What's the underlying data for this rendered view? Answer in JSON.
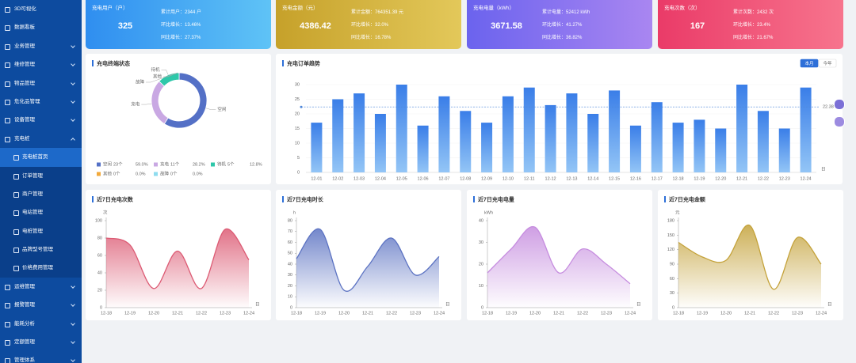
{
  "sidebar": {
    "items": [
      {
        "label": "3D可视化"
      },
      {
        "label": "数据看板"
      },
      {
        "label": "业务管理"
      },
      {
        "label": "维修管理"
      },
      {
        "label": "物品管理"
      },
      {
        "label": "危化品管理"
      },
      {
        "label": "设备管理"
      },
      {
        "label": "充电桩",
        "children": [
          "充电桩首页",
          "订单管理",
          "商户管理",
          "电站管理",
          "电桩管理",
          "品牌型号管理",
          "价格费用管理"
        ]
      },
      {
        "label": "运维管理"
      },
      {
        "label": "报警管理"
      },
      {
        "label": "能耗分析"
      },
      {
        "label": "定额管理"
      },
      {
        "label": "管理体系"
      }
    ]
  },
  "kpis": [
    {
      "title": "充电用户（户）",
      "value": 325,
      "lines": [
        "累计用户：2344 户",
        "环比增长：13.46%",
        "同比增长：27.37%"
      ],
      "colors": [
        "#2f8ef0",
        "#5fc3f6"
      ]
    },
    {
      "title": "充电金额（元）",
      "value": 4386.42,
      "lines": [
        "累计金额：764351.39 元",
        "环比增长：32.0%",
        "同比增长：16.78%"
      ],
      "colors": [
        "#c6a12a",
        "#e3c85a"
      ]
    },
    {
      "title": "充电电量（kWh）",
      "value": 3671.58,
      "lines": [
        "累计电量：52412 kWh",
        "环比增长：41.27%",
        "同比增长：36.82%"
      ],
      "colors": [
        "#6b63ee",
        "#a986f1"
      ]
    },
    {
      "title": "充电次数（次）",
      "value": 167,
      "lines": [
        "累计次数：2432 次",
        "环比增长：23.4%",
        "同比增长：21.67%"
      ],
      "colors": [
        "#ea3b68",
        "#f7748d"
      ]
    }
  ],
  "terminal_status": {
    "title": "充电终端状态",
    "labels": [
      "空闲",
      "充电",
      "待机",
      "其他",
      "故障"
    ],
    "values": [
      23,
      11,
      5,
      0,
      0
    ],
    "value_labels": [
      "23个",
      "11个",
      "5个",
      "0个",
      "0个"
    ],
    "percent_labels": [
      "59.0%",
      "28.2%",
      "12.8%",
      "0.0%",
      "0.0%"
    ],
    "colors": [
      "#5470c6",
      "#c9a8e3",
      "#2ec7a9",
      "#f2a93b",
      "#8fdcef"
    ]
  },
  "orders": {
    "title": "充电订单趋势",
    "tabs": [
      "本月",
      "今年"
    ],
    "categories": [
      "12-01",
      "12-02",
      "12-03",
      "12-04",
      "12-05",
      "12-06",
      "12-07",
      "12-08",
      "12-09",
      "12-10",
      "12-11",
      "12-12",
      "12-13",
      "12-14",
      "12-15",
      "12-16",
      "12-17",
      "12-18",
      "12-19",
      "12-20",
      "12-21",
      "12-22",
      "12-23",
      "12-24"
    ],
    "values": [
      17,
      25,
      27,
      20,
      30,
      16,
      26,
      21,
      17,
      26,
      29,
      23,
      27,
      20,
      28,
      16,
      24,
      17,
      18,
      15,
      30,
      21,
      15,
      29
    ],
    "ylim": [
      0,
      30
    ],
    "yticks": [
      0,
      5,
      10,
      15,
      20,
      25,
      30
    ],
    "average": 22.38,
    "x_unit": "日",
    "colors": [
      "#3a7ee8",
      "#93c5f6"
    ]
  },
  "recent": [
    {
      "title": "近7日充电次数",
      "unit": "次",
      "x_unit": "日",
      "categories": [
        "12-18",
        "12-19",
        "12-20",
        "12-21",
        "12-22",
        "12-23",
        "12-24"
      ],
      "values": [
        80,
        72,
        22,
        65,
        22,
        90,
        55
      ],
      "ylim": [
        0,
        100
      ],
      "yticks": [
        0,
        20,
        40,
        60,
        80,
        100
      ],
      "color": "#dc5a73"
    },
    {
      "title": "近7日充电时长",
      "unit": "h",
      "x_unit": "日",
      "categories": [
        "12-18",
        "12-19",
        "12-20",
        "12-21",
        "12-22",
        "12-23",
        "12-24"
      ],
      "values": [
        45,
        72,
        16,
        38,
        64,
        30,
        47
      ],
      "ylim": [
        0,
        80
      ],
      "yticks": [
        0,
        10,
        20,
        30,
        40,
        50,
        60,
        70,
        80
      ],
      "color": "#5b72c2"
    },
    {
      "title": "近7日充电电量",
      "unit": "kWh",
      "x_unit": "日",
      "categories": [
        "12-18",
        "12-19",
        "12-20",
        "12-21",
        "12-22",
        "12-23",
        "12-24"
      ],
      "values": [
        16,
        27,
        37,
        16,
        27,
        20,
        11
      ],
      "ylim": [
        0,
        40
      ],
      "yticks": [
        0,
        10,
        20,
        30,
        40
      ],
      "color": "#c68ddf"
    },
    {
      "title": "近7日充电金额",
      "unit": "元",
      "x_unit": "日",
      "categories": [
        "12-18",
        "12-19",
        "12-20",
        "12-21",
        "12-22",
        "12-23",
        "12-24"
      ],
      "values": [
        135,
        105,
        98,
        170,
        38,
        145,
        90
      ],
      "ylim": [
        0,
        180
      ],
      "yticks": [
        0,
        30,
        60,
        90,
        120,
        150,
        180
      ],
      "color": "#c4a23a"
    }
  ]
}
